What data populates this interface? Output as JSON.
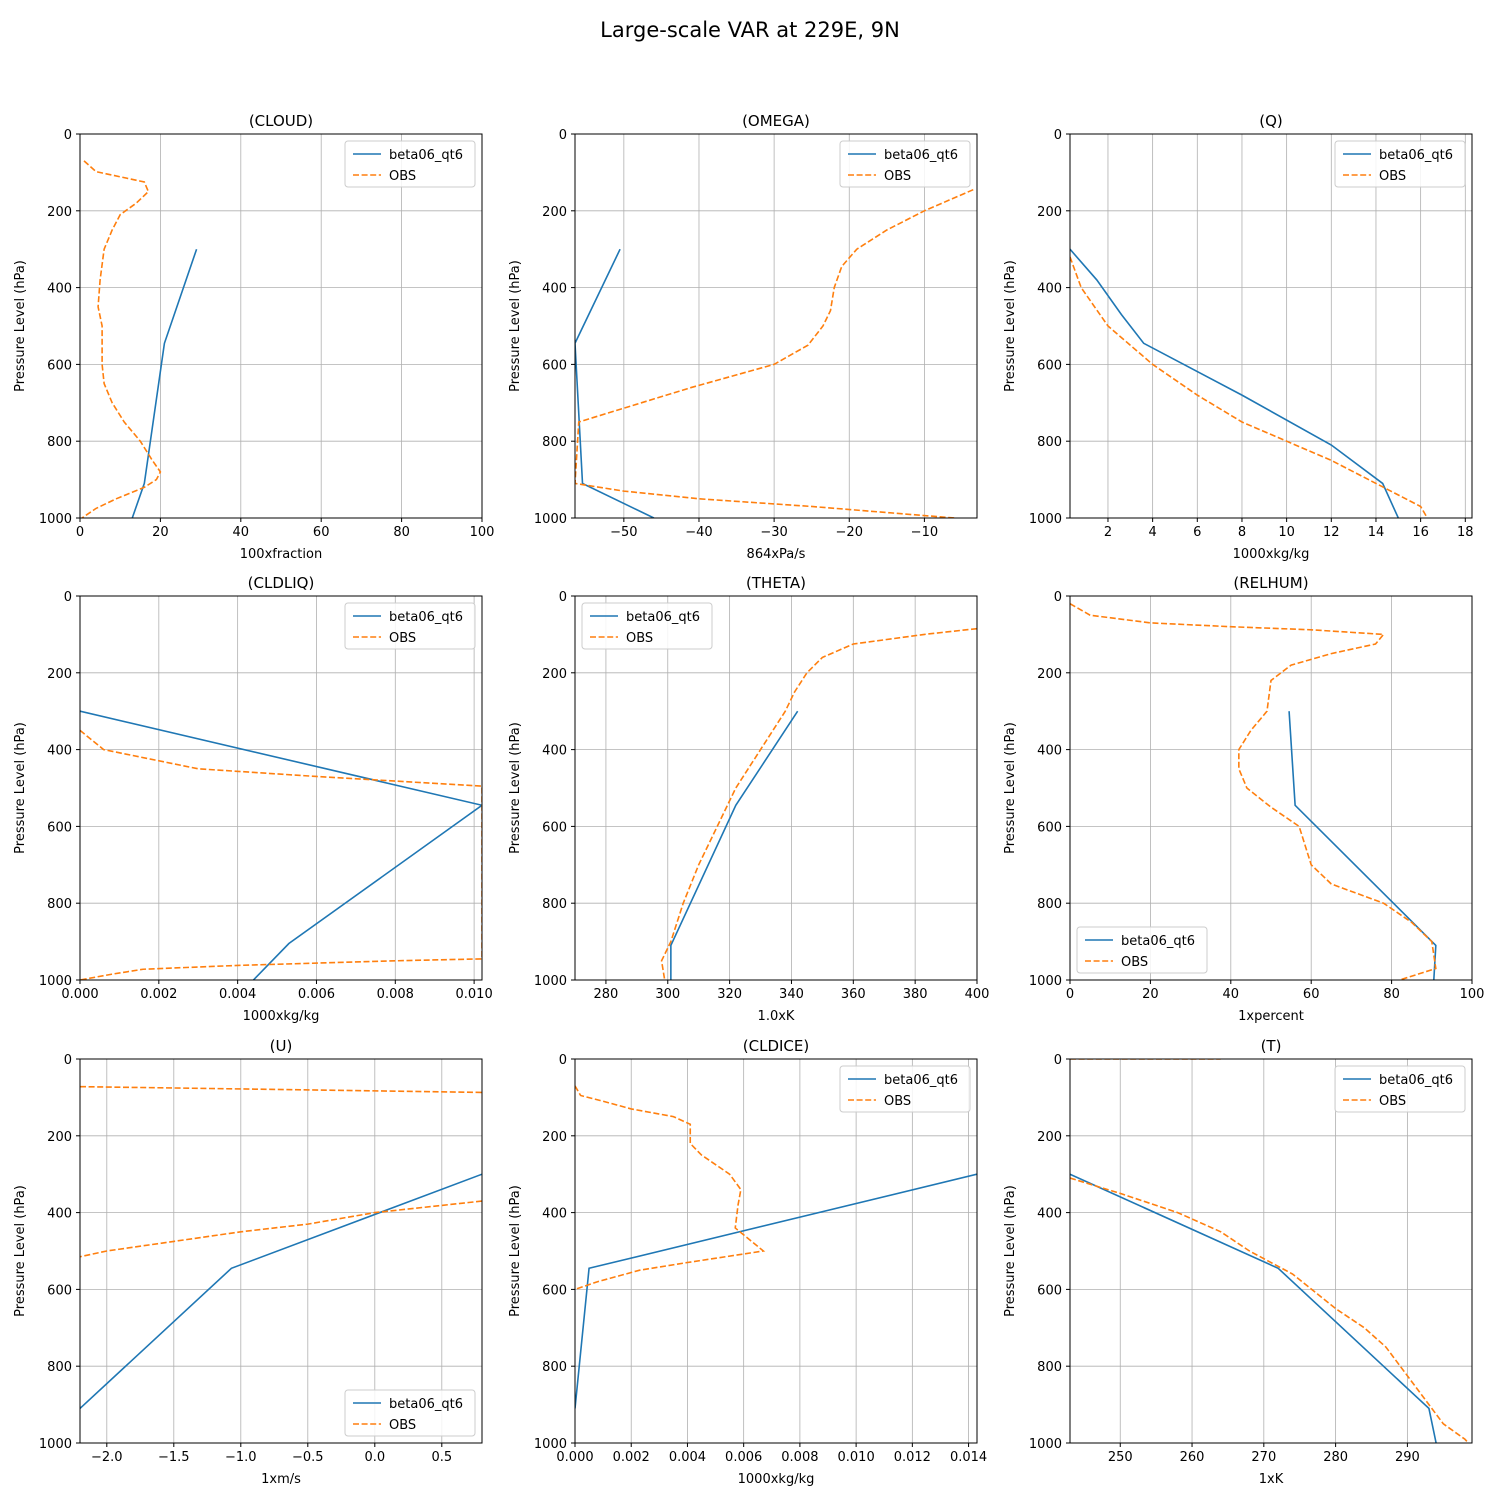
{
  "figure": {
    "title": "Large-scale VAR at 229E, 9N",
    "ylabel": "Pressure Level (hPa)",
    "ylim": [
      1000,
      0
    ],
    "yticks": [
      0,
      200,
      400,
      600,
      800,
      1000
    ],
    "legend": [
      "beta06_qt6",
      "OBS"
    ]
  },
  "colors": {
    "model": "#1f77b4",
    "obs": "#ff7f0e",
    "grid": "#b0b0b0"
  },
  "chart_data": [
    {
      "type": "line",
      "title": "(CLOUD)",
      "xlabel": "100xfraction",
      "xlim": [
        0,
        100
      ],
      "xticks": [
        0,
        20,
        40,
        60,
        80,
        100
      ],
      "xtick_labels": [
        "0",
        "20",
        "40",
        "60",
        "80",
        "100"
      ],
      "legend_loc": "upper-right",
      "series": [
        {
          "name": "beta06_qt6",
          "style": "solid",
          "points": [
            [
              29,
              300
            ],
            [
              21,
              545
            ],
            [
              16,
              910
            ],
            [
              13,
              1000
            ]
          ]
        },
        {
          "name": "OBS",
          "style": "dashed",
          "points": [
            [
              1,
              70
            ],
            [
              4,
              98
            ],
            [
              16,
              125
            ],
            [
              17,
              150
            ],
            [
              14,
              180
            ],
            [
              10,
              210
            ],
            [
              8,
              250
            ],
            [
              6,
              300
            ],
            [
              5,
              380
            ],
            [
              4.5,
              450
            ],
            [
              5.5,
              500
            ],
            [
              5.5,
              600
            ],
            [
              6,
              650
            ],
            [
              8,
              700
            ],
            [
              11,
              750
            ],
            [
              15,
              800
            ],
            [
              18,
              850
            ],
            [
              20,
              880
            ],
            [
              19,
              900
            ],
            [
              16,
              920
            ],
            [
              9,
              950
            ],
            [
              4,
              975
            ],
            [
              0.5,
              1000
            ]
          ]
        }
      ]
    },
    {
      "type": "line",
      "title": "(OMEGA)",
      "xlabel": "864xPa/s",
      "xlim": [
        -56.5,
        -3
      ],
      "xticks": [
        -50,
        -40,
        -30,
        -20,
        -10
      ],
      "xtick_labels": [
        "−50",
        "−40",
        "−30",
        "−20",
        "−10"
      ],
      "legend_loc": "upper-right",
      "series": [
        {
          "name": "beta06_qt6",
          "style": "solid",
          "points": [
            [
              -50.5,
              300
            ],
            [
              -56.5,
              545
            ],
            [
              -55.5,
              910
            ],
            [
              -46,
              1000
            ]
          ]
        },
        {
          "name": "OBS",
          "style": "dashed",
          "points": [
            [
              -3.5,
              145
            ],
            [
              -10,
              200
            ],
            [
              -15,
              250
            ],
            [
              -19,
              300
            ],
            [
              -21,
              345
            ],
            [
              -22,
              400
            ],
            [
              -22.5,
              460
            ],
            [
              -23.5,
              500
            ],
            [
              -25.5,
              550
            ],
            [
              -30,
              600
            ],
            [
              -41,
              660
            ],
            [
              -56,
              750
            ],
            [
              -56.5,
              910
            ],
            [
              -50,
              930
            ],
            [
              -40,
              950
            ],
            [
              -25,
              970
            ],
            [
              -6,
              1000
            ]
          ]
        }
      ]
    },
    {
      "type": "line",
      "title": "(Q)",
      "xlabel": "1000xkg/kg",
      "xlim": [
        0.3,
        18.3
      ],
      "xticks": [
        2,
        4,
        6,
        8,
        10,
        12,
        14,
        16,
        18
      ],
      "xtick_labels": [
        "2",
        "4",
        "6",
        "8",
        "10",
        "12",
        "14",
        "16",
        "18"
      ],
      "legend_loc": "upper-right",
      "series": [
        {
          "name": "beta06_qt6",
          "style": "solid",
          "points": [
            [
              0.3,
              300
            ],
            [
              1.5,
              380
            ],
            [
              2.6,
              470
            ],
            [
              3.6,
              545
            ],
            [
              8,
              680
            ],
            [
              12,
              810
            ],
            [
              14.3,
              910
            ],
            [
              15,
              1000
            ]
          ]
        },
        {
          "name": "OBS",
          "style": "dashed",
          "points": [
            [
              0.3,
              320
            ],
            [
              0.8,
              400
            ],
            [
              2,
              500
            ],
            [
              4,
              600
            ],
            [
              6,
              680
            ],
            [
              8,
              750
            ],
            [
              10,
              800
            ],
            [
              12,
              850
            ],
            [
              14,
              910
            ],
            [
              16,
              970
            ],
            [
              16.3,
              1000
            ]
          ]
        }
      ]
    },
    {
      "type": "line",
      "title": "(CLDLIQ)",
      "xlabel": "1000xkg/kg",
      "xlim": [
        0,
        0.0102
      ],
      "xticks": [
        0,
        0.002,
        0.004,
        0.006,
        0.008,
        0.01
      ],
      "xtick_labels": [
        "0.000",
        "0.002",
        "0.004",
        "0.006",
        "0.008",
        "0.010"
      ],
      "legend_loc": "upper-right",
      "series": [
        {
          "name": "beta06_qt6",
          "style": "solid",
          "points": [
            [
              0,
              300
            ],
            [
              0.0102,
              545
            ],
            [
              0.0053,
              905
            ],
            [
              0.0044,
              1000
            ]
          ]
        },
        {
          "name": "OBS",
          "style": "dashed",
          "points": [
            [
              0,
              350
            ],
            [
              0.0006,
              400
            ],
            [
              0.003,
              450
            ],
            [
              0.006,
              470
            ],
            [
              0.0085,
              485
            ],
            [
              0.0102,
              495
            ],
            [
              0.0102,
              945
            ],
            [
              0.008,
              950
            ],
            [
              0.004,
              962
            ],
            [
              0.0016,
              972
            ],
            [
              0.0008,
              985
            ],
            [
              0,
              1000
            ]
          ]
        }
      ]
    },
    {
      "type": "line",
      "title": "(THETA)",
      "xlabel": "1.0xK",
      "xlim": [
        270,
        400
      ],
      "xticks": [
        280,
        300,
        320,
        340,
        360,
        380,
        400
      ],
      "xtick_labels": [
        "280",
        "300",
        "320",
        "340",
        "360",
        "380",
        "400"
      ],
      "legend_loc": "upper-left",
      "series": [
        {
          "name": "beta06_qt6",
          "style": "solid",
          "points": [
            [
              342,
              300
            ],
            [
              322,
              545
            ],
            [
              301,
              910
            ],
            [
              301,
              1000
            ]
          ]
        },
        {
          "name": "OBS",
          "style": "dashed",
          "points": [
            [
              400,
              85
            ],
            [
              383,
              100
            ],
            [
              360,
              125
            ],
            [
              350,
              160
            ],
            [
              345,
              200
            ],
            [
              341,
              250
            ],
            [
              338,
              300
            ],
            [
              330,
              400
            ],
            [
              322,
              500
            ],
            [
              316,
              600
            ],
            [
              310,
              700
            ],
            [
              305,
              800
            ],
            [
              301,
              900
            ],
            [
              298,
              950
            ],
            [
              299,
              1000
            ]
          ]
        }
      ]
    },
    {
      "type": "line",
      "title": "(RELHUM)",
      "xlabel": "1xpercent",
      "xlim": [
        0,
        100
      ],
      "xticks": [
        0,
        20,
        40,
        60,
        80,
        100
      ],
      "xtick_labels": [
        "0",
        "20",
        "40",
        "60",
        "80",
        "100"
      ],
      "legend_loc": "lower-left",
      "series": [
        {
          "name": "beta06_qt6",
          "style": "solid",
          "points": [
            [
              54.5,
              300
            ],
            [
              56,
              545
            ],
            [
              91,
              910
            ],
            [
              90.5,
              1000
            ]
          ]
        },
        {
          "name": "OBS",
          "style": "dashed",
          "points": [
            [
              0,
              20
            ],
            [
              5,
              50
            ],
            [
              20,
              70
            ],
            [
              40,
              80
            ],
            [
              60,
              88
            ],
            [
              78,
              100
            ],
            [
              76,
              125
            ],
            [
              65,
              150
            ],
            [
              55,
              180
            ],
            [
              50,
              220
            ],
            [
              49,
              300
            ],
            [
              45,
              350
            ],
            [
              42,
              400
            ],
            [
              42,
              450
            ],
            [
              44,
              500
            ],
            [
              50,
              550
            ],
            [
              57,
              600
            ],
            [
              60,
              700
            ],
            [
              65,
              750
            ],
            [
              78,
              800
            ],
            [
              85,
              850
            ],
            [
              90,
              900
            ],
            [
              91,
              970
            ],
            [
              82,
              1000
            ]
          ]
        }
      ]
    },
    {
      "type": "line",
      "title": "(U)",
      "xlabel": "1xm/s",
      "xlim": [
        -2.2,
        0.8
      ],
      "xticks": [
        -2.0,
        -1.5,
        -1.0,
        -0.5,
        0.0,
        0.5
      ],
      "xtick_labels": [
        "−2.0",
        "−1.5",
        "−1.0",
        "−0.5",
        "0.0",
        "0.5"
      ],
      "legend_loc": "lower-right",
      "series": [
        {
          "name": "beta06_qt6",
          "style": "solid",
          "points": [
            [
              0.8,
              300
            ],
            [
              -1.07,
              545
            ],
            [
              -2.2,
              910
            ]
          ]
        },
        {
          "name": "OBS",
          "style": "dashed",
          "points": [
            [
              -2.2,
              72
            ],
            [
              -1,
              78
            ],
            [
              0,
              83
            ],
            [
              0.8,
              87
            ]
          ]
        },
        {
          "name": "OBS",
          "style": "dashed",
          "points": [
            [
              0.8,
              370
            ],
            [
              0,
              400
            ],
            [
              -0.5,
              430
            ],
            [
              -1,
              450
            ],
            [
              -1.5,
              475
            ],
            [
              -2,
              500
            ],
            [
              -2.2,
              515
            ]
          ]
        }
      ]
    },
    {
      "type": "line",
      "title": "(CLDICE)",
      "xlabel": "1000xkg/kg",
      "xlim": [
        0,
        0.0143
      ],
      "xticks": [
        0,
        0.002,
        0.004,
        0.006,
        0.008,
        0.01,
        0.012,
        0.014
      ],
      "xtick_labels": [
        "0.000",
        "0.002",
        "0.004",
        "0.006",
        "0.008",
        "0.010",
        "0.012",
        "0.014"
      ],
      "legend_loc": "upper-right",
      "series": [
        {
          "name": "beta06_qt6",
          "style": "solid",
          "points": [
            [
              0.0143,
              300
            ],
            [
              0.0005,
              545
            ],
            [
              0,
              910
            ]
          ]
        },
        {
          "name": "OBS",
          "style": "dashed",
          "points": [
            [
              0,
              70
            ],
            [
              0.0002,
              95
            ],
            [
              0.001,
              110
            ],
            [
              0.002,
              130
            ],
            [
              0.0035,
              150
            ],
            [
              0.0041,
              170
            ],
            [
              0.0041,
              220
            ],
            [
              0.0045,
              250
            ],
            [
              0.0055,
              300
            ],
            [
              0.0059,
              340
            ],
            [
              0.0058,
              380
            ],
            [
              0.0057,
              440
            ],
            [
              0.0067,
              500
            ],
            [
              0.004,
              530
            ],
            [
              0.0023,
              550
            ],
            [
              0.0008,
              580
            ],
            [
              0,
              600
            ]
          ]
        }
      ]
    },
    {
      "type": "line",
      "title": "(T)",
      "xlabel": "1xK",
      "xlim": [
        243,
        299
      ],
      "xticks": [
        250,
        260,
        270,
        280,
        290
      ],
      "xtick_labels": [
        "250",
        "260",
        "270",
        "280",
        "290"
      ],
      "legend_loc": "upper-right",
      "series": [
        {
          "name": "beta06_qt6",
          "style": "solid",
          "points": [
            [
              243,
              300
            ],
            [
              272,
              545
            ],
            [
              293,
              910
            ],
            [
              294,
              1000
            ]
          ]
        },
        {
          "name": "OBS",
          "style": "dashed",
          "points": [
            [
              243,
              310
            ],
            [
              250,
              350
            ],
            [
              258,
              400
            ],
            [
              264,
              450
            ],
            [
              268,
              500
            ],
            [
              274,
              560
            ],
            [
              280,
              650
            ],
            [
              284,
              700
            ],
            [
              287,
              750
            ],
            [
              289,
              800
            ],
            [
              291,
              850
            ],
            [
              293,
              900
            ],
            [
              295,
              950
            ],
            [
              298,
              990
            ],
            [
              298.5,
              1000
            ]
          ]
        },
        {
          "name": "OBS",
          "style": "dashed",
          "points": [
            [
              243,
              0
            ],
            [
              264,
              0
            ]
          ]
        }
      ]
    }
  ]
}
